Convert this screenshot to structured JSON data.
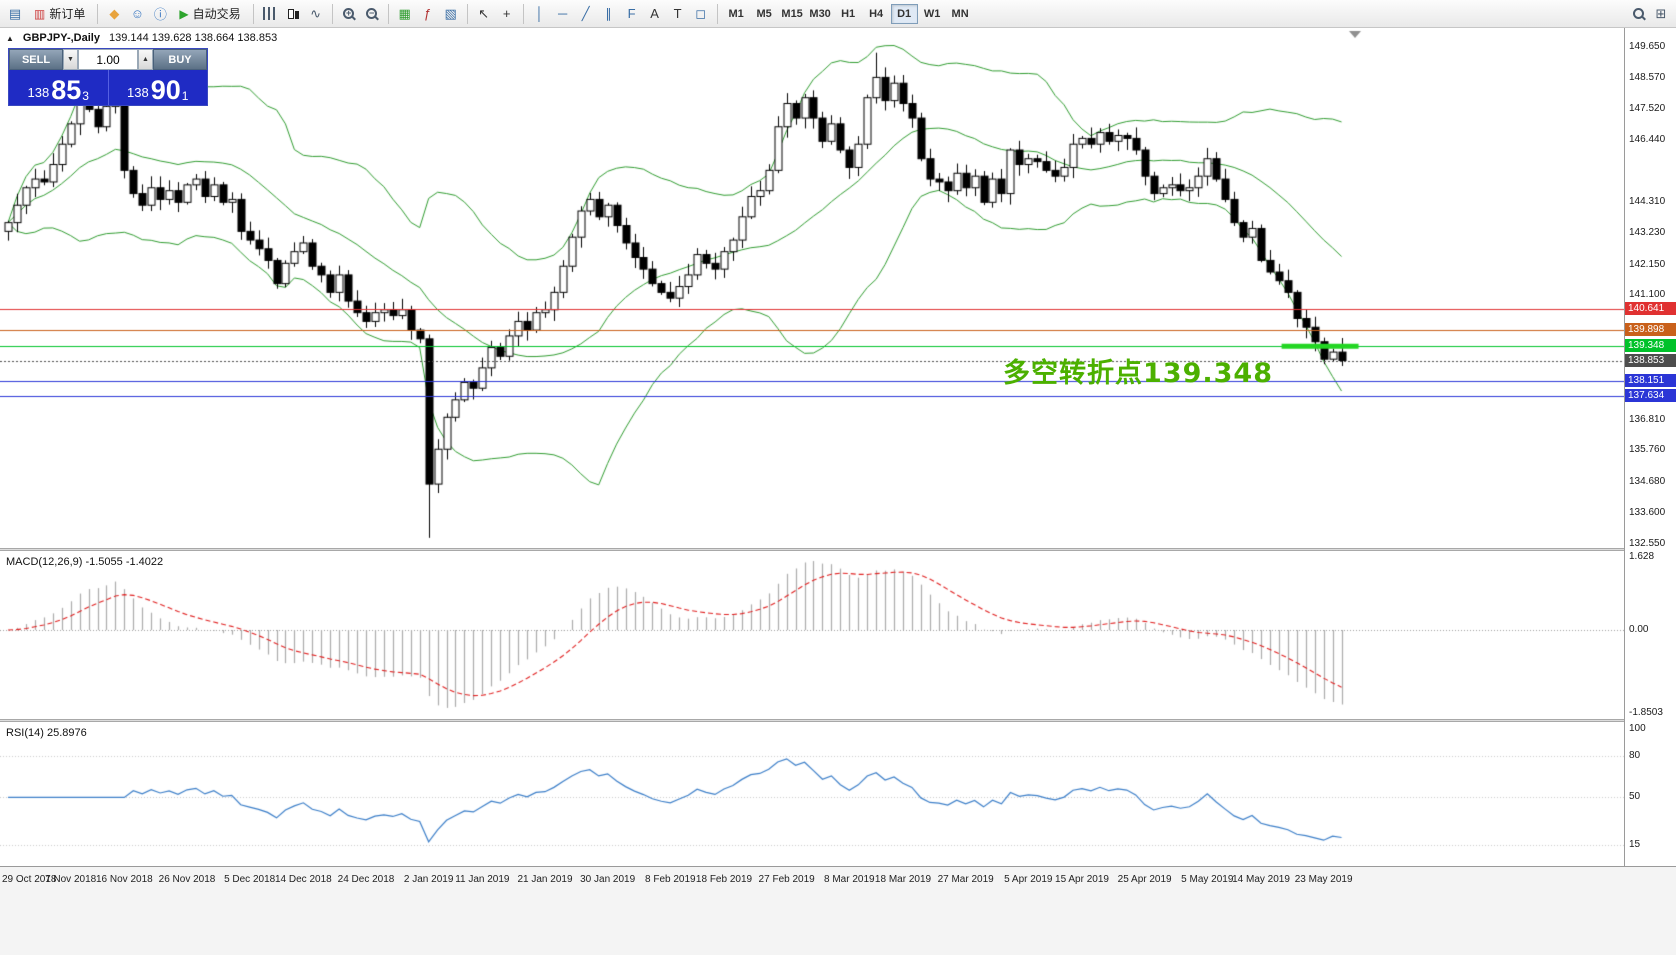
{
  "toolbar": {
    "left_items": [
      {
        "type": "icon",
        "name": "terminal-window-icon",
        "glyph": "▤",
        "color": "#3a6ea5"
      },
      {
        "type": "labeled",
        "name": "new-order-button",
        "glyph": "▥",
        "color": "#cc3b3b",
        "label": "新订单"
      },
      {
        "type": "sep"
      },
      {
        "type": "icon",
        "name": "mql5-icon",
        "glyph": "◆",
        "color": "#e8a33d"
      },
      {
        "type": "icon",
        "name": "community-icon",
        "glyph": "☺",
        "color": "#3a78c2"
      },
      {
        "type": "icon",
        "name": "help-icon",
        "glyph": "ⓘ",
        "color": "#3a78c2"
      },
      {
        "type": "labeled",
        "name": "auto-trading-button",
        "glyph": "▶",
        "color": "#2da42d",
        "label": "自动交易"
      },
      {
        "type": "sep"
      },
      {
        "type": "bars-icon",
        "name": "bar-chart-icon"
      },
      {
        "type": "candle-icon",
        "name": "candlestick-chart-icon"
      },
      {
        "type": "icon",
        "name": "line-chart-icon",
        "glyph": "∿",
        "color": "#4a5a6c"
      },
      {
        "type": "sep"
      },
      {
        "type": "magnifier",
        "name": "zoom-in-icon",
        "sign": "+"
      },
      {
        "type": "magnifier",
        "name": "zoom-out-icon",
        "sign": "−"
      },
      {
        "type": "sep"
      },
      {
        "type": "icon",
        "name": "tile-windows-icon",
        "glyph": "▦",
        "color": "#2d9c2d"
      },
      {
        "type": "icon",
        "name": "indicators-icon",
        "glyph": "ƒ",
        "color": "#b03030"
      },
      {
        "type": "icon",
        "name": "templates-icon",
        "glyph": "▧",
        "color": "#3a6ea5"
      },
      {
        "type": "sep"
      },
      {
        "type": "icon",
        "name": "cursor-icon",
        "glyph": "↖",
        "color": "#333333"
      },
      {
        "type": "icon",
        "name": "crosshair-icon",
        "glyph": "+",
        "color": "#333333"
      },
      {
        "type": "sep"
      },
      {
        "type": "icon",
        "name": "vertical-line-tool",
        "glyph": "│",
        "color": "#3a6ea5"
      },
      {
        "type": "icon",
        "name": "horizontal-line-tool",
        "glyph": "─",
        "color": "#3a6ea5"
      },
      {
        "type": "icon",
        "name": "trendline-tool",
        "glyph": "╱",
        "color": "#3a6ea5"
      },
      {
        "type": "icon",
        "name": "channel-tool",
        "glyph": "∥",
        "color": "#3a6ea5"
      },
      {
        "type": "icon",
        "name": "fibonacci-tool",
        "glyph": "F",
        "color": "#3a6ea5"
      },
      {
        "type": "icon",
        "name": "text-tool",
        "glyph": "A",
        "color": "#333333"
      },
      {
        "type": "icon",
        "name": "label-tool",
        "glyph": "T",
        "color": "#333333"
      },
      {
        "type": "icon",
        "name": "shapes-tool",
        "glyph": "◻",
        "color": "#3a6ea5"
      },
      {
        "type": "sep"
      }
    ],
    "timeframes": [
      "M1",
      "M5",
      "M15",
      "M30",
      "H1",
      "H4",
      "D1",
      "W1",
      "MN"
    ],
    "active_timeframe": "D1",
    "right_items": [
      {
        "type": "magnifier",
        "name": "search-icon",
        "sign": ""
      },
      {
        "type": "icon",
        "name": "expand-icon",
        "glyph": "⊞",
        "color": "#4a5a6c"
      }
    ]
  },
  "symbol_bar": {
    "collapse_icon": "▲",
    "symbol": "GBPJPY-,Daily",
    "ohlc": "139.144 139.628 138.664 138.853"
  },
  "trade_panel": {
    "sell_label": "SELL",
    "buy_label": "BUY",
    "volume": "1.00",
    "down_glyph": "▼",
    "up_glyph": "▲",
    "sell_price": {
      "prefix": "138",
      "main": "85",
      "sup": "3"
    },
    "buy_price": {
      "prefix": "138",
      "main": "90",
      "sup": "1"
    }
  },
  "annotation": {
    "text": "多空转折点139.348",
    "color": "#4cb000"
  },
  "levels": [
    {
      "price": 140.641,
      "label": "140.641",
      "color": "#e03131"
    },
    {
      "price": 139.898,
      "label": "139.898",
      "color": "#c9601a"
    },
    {
      "price": 139.348,
      "label": "139.348",
      "color": "#00c22a"
    },
    {
      "price": 138.853,
      "label": "138.853",
      "color": "#4d4d4d",
      "current": true
    },
    {
      "price": 138.151,
      "label": "138.151",
      "color": "#2b35d6"
    },
    {
      "price": 137.634,
      "label": "137.634",
      "color": "#2b35d6"
    }
  ],
  "trend_segment": {
    "price": 139.348,
    "color": "#22d622",
    "from_index": 142.3,
    "to_index": 150.9,
    "thickness": 5
  },
  "price_axis": {
    "ticks": [
      "149.650",
      "148.570",
      "147.520",
      "146.440",
      "144.310",
      "143.230",
      "142.150",
      "141.100",
      "136.810",
      "135.760",
      "134.680",
      "133.600",
      "132.550"
    ]
  },
  "macd_pane": {
    "label": "MACD(12,26,9) -1.5055 -1.4022",
    "params": [
      12,
      26,
      9
    ],
    "ticks": [
      {
        "text": "1.628",
        "v": 1.628
      },
      {
        "text": "0.00",
        "v": 0
      },
      {
        "text": "-1.8503",
        "v": -1.8503
      }
    ],
    "scale_max": 1.628,
    "scale_min": -1.8503,
    "histogram_color": "#ababab",
    "signal_color": "#e02020"
  },
  "rsi_pane": {
    "label": "RSI(14) 25.8976",
    "period": 14,
    "ticks": [
      {
        "text": "100",
        "v": 100
      },
      {
        "text": "80",
        "v": 80
      },
      {
        "text": "50",
        "v": 50
      },
      {
        "text": "15",
        "v": 15
      }
    ],
    "levels": [
      80,
      50,
      15
    ],
    "line_color": "#3b7ec8",
    "scale_max": 105,
    "scale_min": 0
  },
  "time_axis": {
    "labels": [
      "29 Oct 2018",
      "7 Nov 2018",
      "16 Nov 2018",
      "26 Nov 2018",
      "5 Dec 2018",
      "14 Dec 2018",
      "24 Dec 2018",
      "2 Jan 2019",
      "11 Jan 2019",
      "21 Jan 2019",
      "30 Jan 2019",
      "8 Feb 2019",
      "18 Feb 2019",
      "27 Feb 2019",
      "8 Mar 2019",
      "18 Mar 2019",
      "27 Mar 2019",
      "5 Apr 2019",
      "15 Apr 2019",
      "25 Apr 2019",
      "5 May 2019",
      "14 May 2019",
      "23 May 2019"
    ]
  },
  "chart_data": {
    "type": "candlestick",
    "symbol": "GBPJPY-",
    "timeframe": "Daily",
    "first_open": 143.3,
    "price_range": [
      132.4,
      150.3
    ],
    "closes": [
      143.6,
      144.2,
      144.8,
      145.1,
      145.0,
      145.6,
      146.3,
      147.0,
      147.8,
      147.5,
      146.9,
      147.6,
      148.2,
      145.4,
      144.6,
      144.2,
      144.8,
      144.4,
      144.7,
      144.3,
      144.9,
      145.1,
      144.5,
      144.9,
      144.3,
      144.4,
      143.3,
      143.0,
      142.7,
      142.3,
      141.5,
      142.2,
      142.6,
      142.9,
      142.1,
      141.8,
      141.2,
      141.8,
      140.9,
      140.5,
      140.2,
      140.5,
      140.6,
      140.4,
      140.6,
      139.9,
      139.6,
      134.6,
      135.8,
      136.9,
      137.5,
      138.1,
      137.9,
      138.6,
      139.3,
      139.0,
      139.7,
      140.2,
      139.9,
      140.5,
      140.6,
      141.2,
      142.1,
      143.1,
      144.0,
      144.4,
      143.8,
      144.2,
      143.5,
      142.9,
      142.4,
      142.0,
      141.5,
      141.2,
      141.0,
      141.4,
      141.8,
      142.5,
      142.2,
      142.0,
      142.6,
      143.0,
      143.8,
      144.5,
      144.7,
      145.4,
      146.9,
      147.7,
      147.2,
      147.9,
      147.2,
      146.4,
      147.0,
      146.1,
      145.5,
      146.3,
      147.9,
      148.6,
      147.8,
      148.4,
      147.7,
      147.2,
      145.8,
      145.1,
      145.0,
      144.7,
      145.3,
      144.8,
      145.2,
      144.3,
      145.1,
      144.6,
      146.1,
      145.6,
      145.8,
      145.7,
      145.4,
      145.2,
      145.5,
      146.3,
      146.5,
      146.3,
      146.7,
      146.4,
      146.6,
      146.5,
      146.1,
      145.2,
      144.6,
      144.8,
      144.9,
      144.7,
      144.8,
      145.2,
      145.8,
      145.1,
      144.4,
      143.6,
      143.1,
      143.4,
      142.3,
      141.9,
      141.6,
      141.2,
      140.3,
      140.0,
      139.5,
      138.9,
      139.144,
      138.853
    ],
    "special": {
      "47": {
        "low": 132.75
      },
      "97": {
        "high": 149.45
      },
      "149": {
        "open": 139.144,
        "high": 139.628,
        "low": 138.664
      }
    },
    "bollinger": {
      "period": 20,
      "deviation": 2,
      "color": "#2e9b2e"
    },
    "candle_up_color": "#ffffff",
    "candle_down_color": "#000000",
    "candle_border": "#000000"
  }
}
